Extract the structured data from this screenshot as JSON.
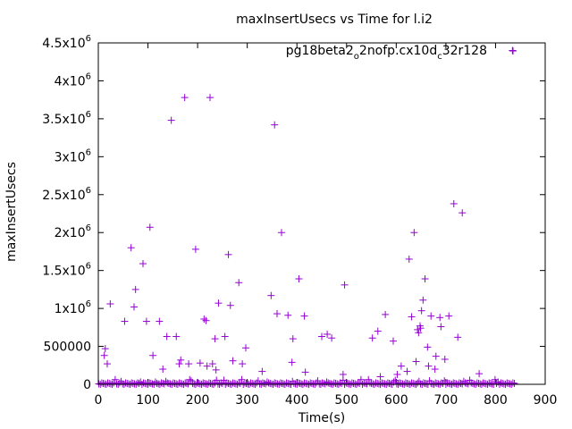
{
  "chart_data": {
    "type": "scatter",
    "title": "maxInsertUsecs vs Time for l.i2",
    "xlabel": "Time(s)",
    "ylabel": "maxInsertUsecs",
    "xlim": [
      0,
      900
    ],
    "ylim": [
      0,
      4500000
    ],
    "x_ticks": [
      {
        "value": 0,
        "label": "0"
      },
      {
        "value": 100,
        "label": "100"
      },
      {
        "value": 200,
        "label": "200"
      },
      {
        "value": 300,
        "label": "300"
      },
      {
        "value": 400,
        "label": "400"
      },
      {
        "value": 500,
        "label": "500"
      },
      {
        "value": 600,
        "label": "600"
      },
      {
        "value": 700,
        "label": "700"
      },
      {
        "value": 800,
        "label": "800"
      },
      {
        "value": 900,
        "label": "900"
      }
    ],
    "y_ticks": [
      {
        "value": 0,
        "base": "0",
        "exp": ""
      },
      {
        "value": 500000,
        "base": "500000",
        "exp": ""
      },
      {
        "value": 1000000,
        "base": "1x10",
        "exp": "6"
      },
      {
        "value": 1500000,
        "base": "1.5x10",
        "exp": "6"
      },
      {
        "value": 2000000,
        "base": "2x10",
        "exp": "6"
      },
      {
        "value": 2500000,
        "base": "2.5x10",
        "exp": "6"
      },
      {
        "value": 3000000,
        "base": "3x10",
        "exp": "6"
      },
      {
        "value": 3500000,
        "base": "3.5x10",
        "exp": "6"
      },
      {
        "value": 4000000,
        "base": "4x10",
        "exp": "6"
      },
      {
        "value": 4500000,
        "base": "4.5x10",
        "exp": "6"
      }
    ],
    "grid": false,
    "legend_position": "top-right",
    "series": [
      {
        "name_parts": [
          "pg18beta2",
          "o",
          "2nofp.cx10d",
          "c",
          "32r128"
        ],
        "color": "#9400d3",
        "points": [
          [
            12,
            380000
          ],
          [
            14,
            470000
          ],
          [
            18,
            270000
          ],
          [
            24,
            1060000
          ],
          [
            53,
            830000
          ],
          [
            66,
            1800000
          ],
          [
            72,
            1020000
          ],
          [
            75,
            1250000
          ],
          [
            90,
            1590000
          ],
          [
            97,
            830000
          ],
          [
            104,
            2070000
          ],
          [
            110,
            380000
          ],
          [
            123,
            830000
          ],
          [
            130,
            200000
          ],
          [
            138,
            630000
          ],
          [
            147,
            3480000
          ],
          [
            157,
            630000
          ],
          [
            163,
            270000
          ],
          [
            166,
            320000
          ],
          [
            174,
            3780000
          ],
          [
            182,
            270000
          ],
          [
            196,
            1780000
          ],
          [
            205,
            280000
          ],
          [
            213,
            860000
          ],
          [
            217,
            840000
          ],
          [
            219,
            240000
          ],
          [
            225,
            3780000
          ],
          [
            230,
            270000
          ],
          [
            235,
            600000
          ],
          [
            237,
            190000
          ],
          [
            242,
            1070000
          ],
          [
            255,
            630000
          ],
          [
            262,
            1710000
          ],
          [
            266,
            1040000
          ],
          [
            271,
            310000
          ],
          [
            283,
            1340000
          ],
          [
            290,
            270000
          ],
          [
            297,
            480000
          ],
          [
            330,
            170000
          ],
          [
            348,
            1170000
          ],
          [
            355,
            3420000
          ],
          [
            360,
            930000
          ],
          [
            369,
            2000000
          ],
          [
            382,
            910000
          ],
          [
            390,
            290000
          ],
          [
            392,
            600000
          ],
          [
            404,
            1390000
          ],
          [
            415,
            900000
          ],
          [
            417,
            160000
          ],
          [
            450,
            630000
          ],
          [
            461,
            660000
          ],
          [
            470,
            610000
          ],
          [
            493,
            130000
          ],
          [
            496,
            1310000
          ],
          [
            552,
            610000
          ],
          [
            563,
            700000
          ],
          [
            568,
            100000
          ],
          [
            578,
            920000
          ],
          [
            594,
            570000
          ],
          [
            602,
            130000
          ],
          [
            610,
            240000
          ],
          [
            622,
            170000
          ],
          [
            626,
            1650000
          ],
          [
            631,
            890000
          ],
          [
            636,
            2000000
          ],
          [
            640,
            300000
          ],
          [
            643,
            720000
          ],
          [
            645,
            680000
          ],
          [
            648,
            770000
          ],
          [
            649,
            740000
          ],
          [
            651,
            970000
          ],
          [
            654,
            1110000
          ],
          [
            658,
            1390000
          ],
          [
            663,
            490000
          ],
          [
            665,
            240000
          ],
          [
            670,
            900000
          ],
          [
            678,
            200000
          ],
          [
            680,
            370000
          ],
          [
            688,
            880000
          ],
          [
            690,
            760000
          ],
          [
            698,
            330000
          ],
          [
            706,
            900000
          ],
          [
            716,
            2380000
          ],
          [
            724,
            620000
          ],
          [
            733,
            2260000
          ],
          [
            767,
            140000
          ],
          [
            834,
            4400000
          ]
        ]
      }
    ]
  }
}
